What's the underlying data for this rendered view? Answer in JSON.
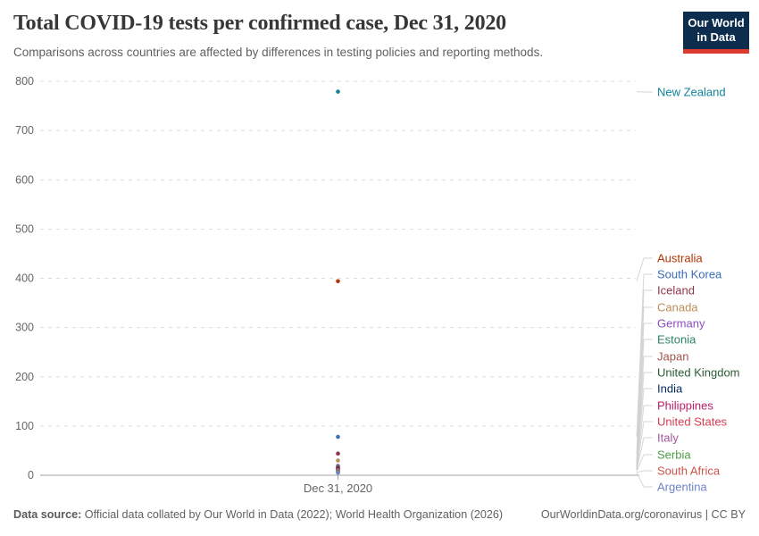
{
  "header": {
    "title": "Total COVID-19 tests per confirmed case, Dec 31, 2020",
    "subtitle": "Comparisons across countries are affected by differences in testing policies and reporting methods.",
    "logo": {
      "line1": "Our World",
      "line2": "in Data",
      "bg": "#0C2D4E",
      "red": "#DC3B2E"
    }
  },
  "footer": {
    "source_label": "Data source:",
    "source_text": " Official data collated by Our World in Data (2022); World Health Organization (2026)",
    "url": "OurWorldinData.org/coronavirus",
    "separator": " | ",
    "license": "CC BY"
  },
  "chart_data": {
    "type": "scatter",
    "title": "Total COVID-19 tests per confirmed case, Dec 31, 2020",
    "xlabel": "",
    "ylabel": "",
    "x_tick_label": "Dec 31, 2020",
    "y_ticks": [
      0,
      100,
      200,
      300,
      400,
      500,
      600,
      700,
      800
    ],
    "ylim": [
      0,
      800
    ],
    "grid": "dashed-horizontal",
    "legend_position": "right-labels-with-leader-lines",
    "series": [
      {
        "name": "New Zealand",
        "value": 779,
        "color": "#0F839C",
        "label_y": 103
      },
      {
        "name": "Australia",
        "value": 394,
        "color": "#B13507",
        "label_y": 289
      },
      {
        "name": "South Korea",
        "value": 78,
        "color": "#3C6EB5",
        "label_y": 307
      },
      {
        "name": "Iceland",
        "value": 44,
        "color": "#8E3745",
        "label_y": 325
      },
      {
        "name": "Canada",
        "value": 30,
        "color": "#BC8E5A",
        "label_y": 344
      },
      {
        "name": "Germany",
        "value": 19,
        "color": "#8C4EC0",
        "label_y": 362
      },
      {
        "name": "Estonia",
        "value": 17,
        "color": "#2C8465",
        "label_y": 380
      },
      {
        "name": "Japan",
        "value": 16,
        "color": "#A2554D",
        "label_y": 399
      },
      {
        "name": "United Kingdom",
        "value": 14,
        "color": "#2B5A34",
        "label_y": 417
      },
      {
        "name": "India",
        "value": 13,
        "color": "#00295B",
        "label_y": 435
      },
      {
        "name": "Philippines",
        "value": 12,
        "color": "#BC1E6B",
        "label_y": 454
      },
      {
        "name": "United States",
        "value": 11,
        "color": "#D73C50",
        "label_y": 472
      },
      {
        "name": "Italy",
        "value": 10,
        "color": "#A2559C",
        "label_y": 490
      },
      {
        "name": "Serbia",
        "value": 8,
        "color": "#4C9C44",
        "label_y": 509
      },
      {
        "name": "South Africa",
        "value": 6,
        "color": "#CC5449",
        "label_y": 527
      },
      {
        "name": "Argentina",
        "value": 5,
        "color": "#6D84C6",
        "label_y": 545
      }
    ]
  }
}
